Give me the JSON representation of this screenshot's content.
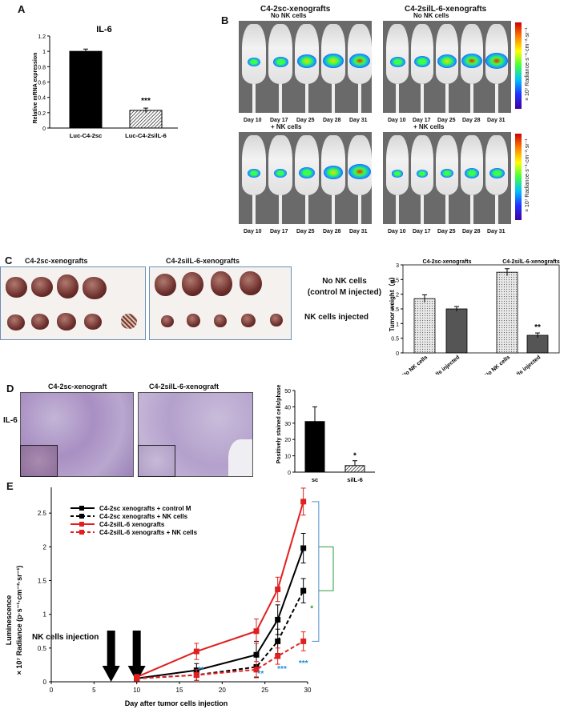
{
  "panels": {
    "A": "A",
    "B": "B",
    "C": "C",
    "D": "D",
    "E": "E"
  },
  "panel_a": {
    "chart_data": {
      "type": "bar",
      "title": "IL-6",
      "ylabel": "Relative mRNA expression",
      "categories": [
        "Luc-C4-2sc",
        "Luc-C4-2silL-6"
      ],
      "values": [
        1.0,
        0.23
      ],
      "errors": [
        0.03,
        0.03
      ],
      "ylim": [
        0,
        1.2
      ],
      "yticks": [
        "0",
        "0.2",
        "0.4",
        "0.6",
        "0.8",
        "1",
        "1.2"
      ],
      "annotations": [
        "***"
      ],
      "colors": [
        "#000000",
        "hatched"
      ]
    }
  },
  "panel_b": {
    "col_titles": [
      "C4-2sc-xenografts",
      "C4-2silL-6-xenografts"
    ],
    "row_labels": [
      "No NK cells",
      "+ NK cells"
    ],
    "days": [
      "Day 10",
      "Day 17",
      "Day 25",
      "Day 28",
      "Day 31"
    ],
    "scale_label": "× 10⁷ Radiance·s⁻¹·cm⁻²·sr⁻¹"
  },
  "panel_c": {
    "photo_titles": [
      "C4-2sc-xenografts",
      "C4-2silL-6-xenografts"
    ],
    "row_label_top_line1": "No NK cells",
    "row_label_top_line2": "(control M injected)",
    "row_label_bottom": "NK cells injected",
    "chart_data": {
      "type": "bar",
      "ylabel": "Tumor weight（g）",
      "groups": [
        "C4-2sc-xenografts",
        "C4-2silL-6-xenografts"
      ],
      "categories": [
        "No NK cells",
        "NK cells injected",
        "No NK cells",
        "NK cells injected"
      ],
      "values": [
        1.85,
        1.5,
        2.75,
        0.6
      ],
      "errors": [
        0.13,
        0.08,
        0.12,
        0.08
      ],
      "ylim": [
        0,
        3
      ],
      "yticks": [
        "0",
        "0.5",
        "1",
        "1.5",
        "2",
        "2.5",
        "3"
      ],
      "annotations": [
        "**"
      ]
    }
  },
  "panel_d": {
    "image_titles": [
      "C4-2sc-xenograft",
      "C4-2silL-6-xenograft"
    ],
    "row_label": "IL-6",
    "chart_data": {
      "type": "bar",
      "ylabel": "Positively stained cells/phase",
      "categories": [
        "sc",
        "silL-6"
      ],
      "values": [
        31,
        4
      ],
      "errors": [
        9,
        3
      ],
      "ylim": [
        0,
        50
      ],
      "yticks": [
        "0",
        "10",
        "20",
        "30",
        "40",
        "50"
      ],
      "annotations": [
        "*"
      ]
    }
  },
  "panel_e": {
    "chart_data": {
      "type": "line",
      "ylabel_line1": "Luminescence",
      "ylabel_line2": "× 10⁷ Radiance (p·s⁻¹·cm⁻²·sr⁻¹)",
      "xlabel": "Day after tumor cells injection",
      "xlim": [
        0,
        30
      ],
      "ylim": [
        0,
        3
      ],
      "xticks": [
        "0",
        "5",
        "10",
        "15",
        "20",
        "25",
        "30"
      ],
      "yticks": [
        "0",
        "0.5",
        "1",
        "1.5",
        "2",
        "2.5"
      ],
      "x": [
        10,
        17,
        24,
        26.5,
        29.5
      ],
      "series": [
        {
          "name": "C4-2sc xenografts + control M",
          "color": "#000000",
          "dashed": false,
          "values": [
            0.05,
            0.17,
            0.4,
            0.92,
            1.98
          ],
          "errors": [
            0.04,
            0.1,
            0.2,
            0.22,
            0.22
          ]
        },
        {
          "name": "C4-2sc xenografts + NK cells",
          "color": "#000000",
          "dashed": true,
          "values": [
            0.05,
            0.1,
            0.22,
            0.6,
            1.35
          ],
          "errors": [
            0.04,
            0.08,
            0.15,
            0.18,
            0.18
          ]
        },
        {
          "name": "C4-2silL-6 xenografts",
          "color": "#e02020",
          "dashed": false,
          "values": [
            0.07,
            0.45,
            0.75,
            1.37,
            2.67
          ],
          "errors": [
            0.04,
            0.12,
            0.18,
            0.18,
            0.2
          ]
        },
        {
          "name": "C4-2silL-6 xenografts + NK cells",
          "color": "#e02020",
          "dashed": true,
          "values": [
            0.05,
            0.1,
            0.18,
            0.38,
            0.6
          ],
          "errors": [
            0.04,
            0.08,
            0.12,
            0.12,
            0.14
          ]
        }
      ],
      "annotation": "NK cells injection",
      "arrows_at": [
        7,
        10
      ],
      "blue_stars": [
        "**",
        "**",
        "***",
        "***"
      ],
      "green_star": "*"
    }
  }
}
